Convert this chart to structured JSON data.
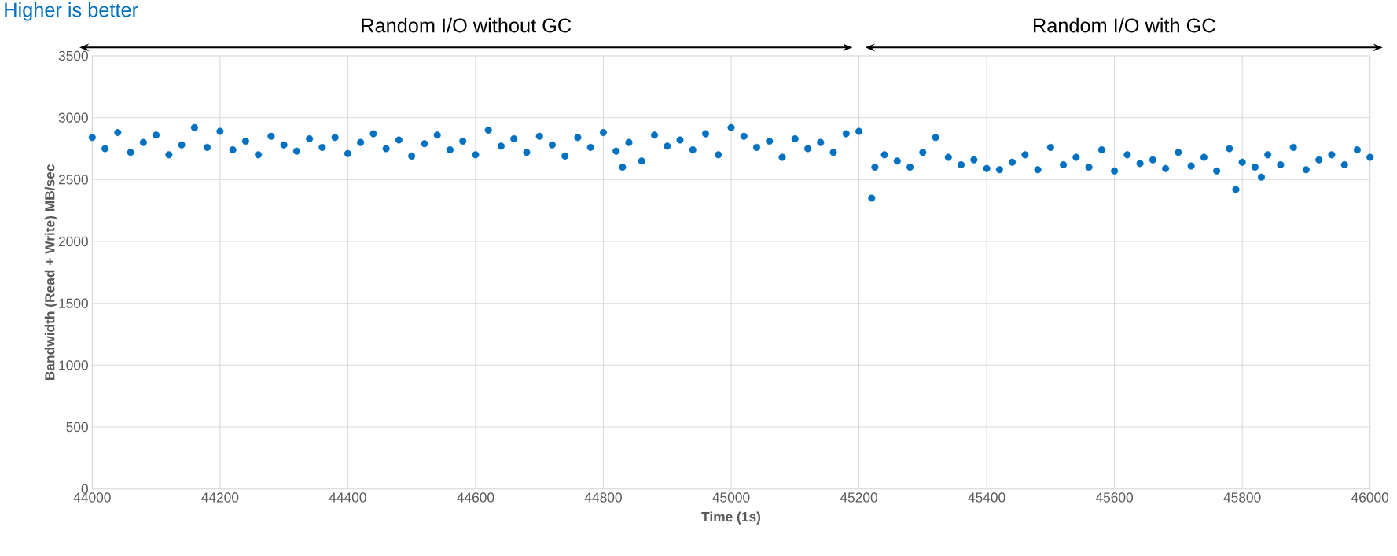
{
  "chart_data": {
    "type": "scatter",
    "title": "Higher is better",
    "xlabel": "Time (1s)",
    "ylabel": "Bandwidth (Read + Write) MB/sec",
    "xlim": [
      44000,
      46000
    ],
    "xticks": [
      44000,
      44200,
      44400,
      44600,
      44800,
      45000,
      45200,
      45400,
      45600,
      45800,
      46000
    ],
    "ylim": [
      0,
      3500
    ],
    "yticks": [
      0,
      500,
      1000,
      1500,
      2000,
      2500,
      3000,
      3500
    ],
    "grid": true,
    "marker": "circle",
    "annotations": [
      "Random I/O without GC",
      "Random I/O with GC"
    ],
    "series": [
      {
        "color": "#0070c0",
        "x": [
          44000,
          44020,
          44040,
          44060,
          44080,
          44100,
          44120,
          44140,
          44160,
          44180,
          44200,
          44220,
          44240,
          44260,
          44280,
          44300,
          44320,
          44340,
          44360,
          44380,
          44400,
          44420,
          44440,
          44460,
          44480,
          44500,
          44520,
          44540,
          44560,
          44580,
          44600,
          44620,
          44640,
          44660,
          44680,
          44700,
          44720,
          44740,
          44760,
          44780,
          44800,
          44820,
          44830,
          44840,
          44860,
          44880,
          44900,
          44920,
          44940,
          44960,
          44980,
          45000,
          45020,
          45040,
          45060,
          45080,
          45100,
          45120,
          45140,
          45160,
          45180,
          45200,
          45220,
          45225,
          45240,
          45260,
          45280,
          45300,
          45320,
          45340,
          45360,
          45380,
          45400,
          45420,
          45440,
          45460,
          45480,
          45500,
          45520,
          45540,
          45560,
          45580,
          45600,
          45620,
          45640,
          45660,
          45680,
          45700,
          45720,
          45740,
          45760,
          45780,
          45790,
          45800,
          45820,
          45830,
          45840,
          45860,
          45880,
          45900,
          45920,
          45940,
          45960,
          45980,
          46000
        ],
        "values": [
          2840,
          2750,
          2880,
          2720,
          2800,
          2860,
          2700,
          2780,
          2920,
          2760,
          2890,
          2740,
          2810,
          2700,
          2850,
          2780,
          2730,
          2830,
          2760,
          2840,
          2710,
          2800,
          2870,
          2750,
          2820,
          2690,
          2790,
          2860,
          2740,
          2810,
          2700,
          2900,
          2770,
          2830,
          2720,
          2850,
          2780,
          2690,
          2840,
          2760,
          2880,
          2730,
          2600,
          2800,
          2650,
          2860,
          2770,
          2820,
          2740,
          2870,
          2700,
          2920,
          2850,
          2760,
          2810,
          2680,
          2830,
          2750,
          2800,
          2720,
          2870,
          2890,
          2350,
          2600,
          2700,
          2650,
          2600,
          2720,
          2840,
          2680,
          2620,
          2660,
          2590,
          2580,
          2640,
          2700,
          2580,
          2760,
          2620,
          2680,
          2600,
          2740,
          2570,
          2700,
          2630,
          2660,
          2590,
          2720,
          2610,
          2680,
          2570,
          2750,
          2420,
          2640,
          2600,
          2520,
          2700,
          2620,
          2760,
          2580,
          2660,
          2700,
          2620,
          2740,
          2680
        ]
      }
    ]
  }
}
